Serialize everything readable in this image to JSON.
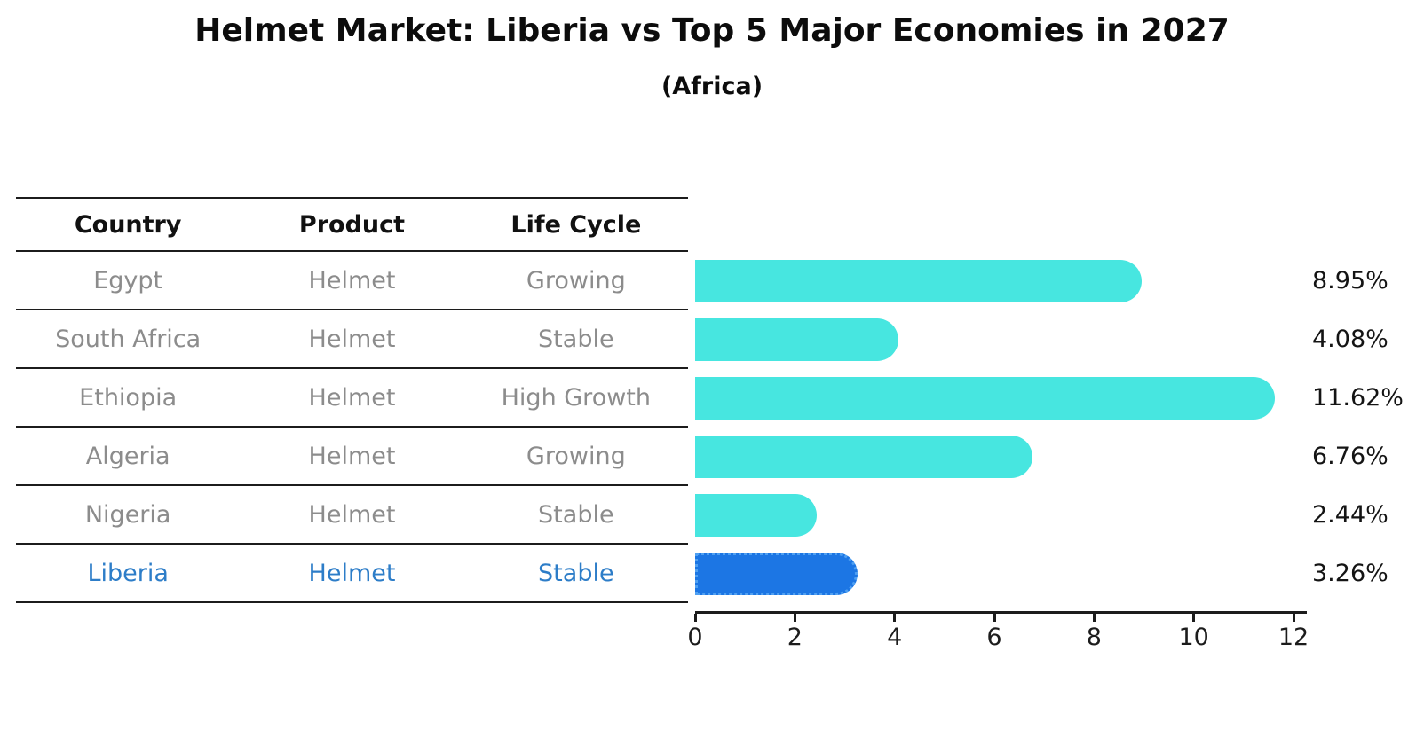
{
  "page": {
    "title": "Helmet Market: Liberia vs Top 5 Major Economies in 2027",
    "subtitle": "(Africa)"
  },
  "table": {
    "headers": [
      "Country",
      "Product",
      "Life Cycle"
    ],
    "rows": [
      {
        "country": "Egypt",
        "product": "Helmet",
        "life_cycle": "Growing",
        "highlight": false
      },
      {
        "country": "South Africa",
        "product": "Helmet",
        "life_cycle": "Stable",
        "highlight": false
      },
      {
        "country": "Ethiopia",
        "product": "Helmet",
        "life_cycle": "High Growth",
        "highlight": false
      },
      {
        "country": "Algeria",
        "product": "Helmet",
        "life_cycle": "Growing",
        "highlight": false
      },
      {
        "country": "Nigeria",
        "product": "Helmet",
        "life_cycle": "Stable",
        "highlight": false
      },
      {
        "country": "Liberia",
        "product": "Helmet",
        "life_cycle": "Stable",
        "highlight": true
      }
    ]
  },
  "chart_data": {
    "type": "bar",
    "orientation": "horizontal",
    "title": "Helmet Market: Liberia vs Top 5 Major Economies in 2027",
    "subtitle": "(Africa)",
    "categories": [
      "Egypt",
      "South Africa",
      "Ethiopia",
      "Algeria",
      "Nigeria",
      "Liberia"
    ],
    "values": [
      8.95,
      4.08,
      11.62,
      6.76,
      2.44,
      3.26
    ],
    "value_labels": [
      "8.95%",
      "4.08%",
      "11.62%",
      "6.76%",
      "2.44%",
      "3.26%"
    ],
    "highlight_category": "Liberia",
    "x_ticks": [
      0,
      2,
      4,
      6,
      8,
      10,
      12
    ],
    "xlim": [
      0,
      12
    ],
    "grid": false,
    "legend": false
  },
  "colors": {
    "bar_default": "#47E6E0",
    "bar_highlight": "#1C76E4",
    "bar_highlight_edge": "#4FA0F2",
    "table_text": "#8C8C8C",
    "highlight_text": "#2D7DC8",
    "heading_text": "#111111",
    "axis_text": "#1C1C1C"
  }
}
